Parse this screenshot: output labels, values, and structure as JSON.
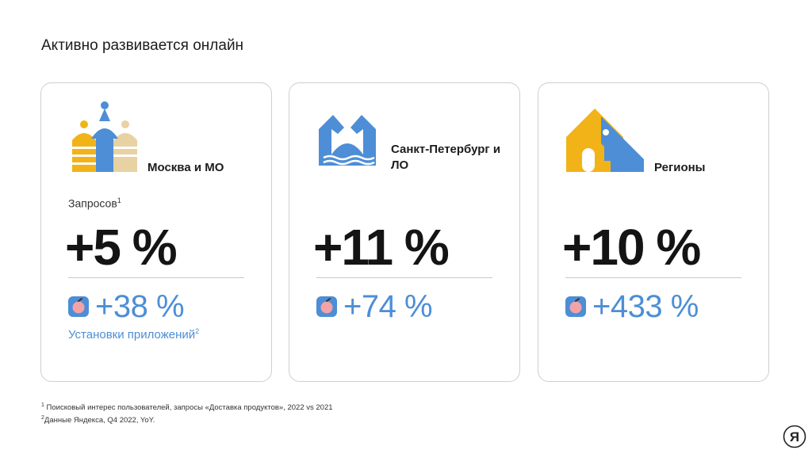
{
  "slide": {
    "title": "Активно развивается онлайн"
  },
  "cards": [
    {
      "region": "Москва и МО",
      "icon": "kremlin-icon",
      "metric_label": "Запросов",
      "metric_label_sup": "1",
      "value": "+5 %",
      "app_value": "+38 %",
      "app_caption": "Установки приложений",
      "app_caption_sup": "2"
    },
    {
      "region": "Санкт-Петербург и ЛО",
      "icon": "bridge-icon",
      "value": "+11 %",
      "app_value": "+74 %"
    },
    {
      "region": "Регионы",
      "icon": "house-icon",
      "value": "+10 %",
      "app_value": "+433 %"
    }
  ],
  "footnotes": [
    {
      "sup": "1",
      "text": "Поисковый интерес пользователей, запросы «Доставка продуктов», 2022 vs 2021"
    },
    {
      "sup": "2",
      "text": "Данные Яндекса, Q4 2022, YoY."
    }
  ],
  "brand": {
    "letter": "Я",
    "icon": "yandex-logo-icon"
  },
  "colors": {
    "accent_blue": "#4d8ed6",
    "yellow": "#f2b319",
    "beige": "#e8d2a3",
    "text": "#1a1a1a"
  }
}
